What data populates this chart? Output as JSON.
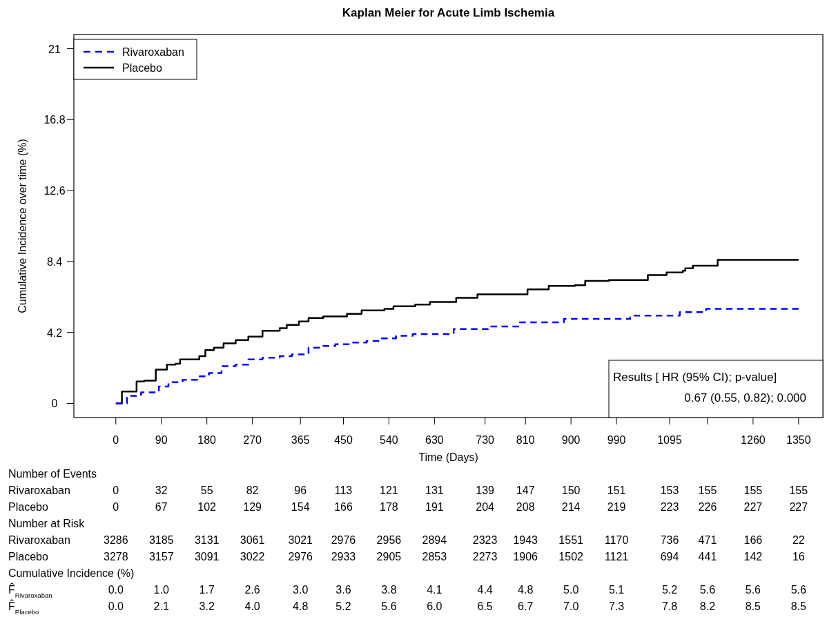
{
  "chart_data": {
    "type": "step",
    "title": "Kaplan Meier for Acute Limb Ischemia",
    "xlabel": "Time (Days)",
    "ylabel": "Cumulative Incidence over time (%)",
    "xlim": [
      -83,
      1398
    ],
    "ylim": [
      -0.84,
      21.84
    ],
    "xticks": [
      0,
      90,
      180,
      270,
      365,
      450,
      540,
      630,
      730,
      810,
      900,
      990,
      1095,
      {
        "value": 1170,
        "label": null
      },
      1260,
      1350
    ],
    "yticks": [
      0,
      4.2,
      8.4,
      12.6,
      16.8,
      21
    ],
    "legend": "top left",
    "series": [
      {
        "name": "Rivaroxaban",
        "color": "#0000ff",
        "line_style": "dashed",
        "x": [
          0,
          22,
          50,
          85,
          104,
          132,
          161,
          184,
          209,
          237,
          262,
          290,
          324,
          348,
          381,
          405,
          434,
          463,
          496,
          524,
          554,
          587,
          668,
          736,
          799,
          886,
          1017,
          1115,
          1167,
          1350
        ],
        "values": [
          0,
          0.45,
          0.65,
          1.0,
          1.25,
          1.4,
          1.6,
          1.8,
          2.2,
          2.3,
          2.6,
          2.7,
          2.8,
          2.9,
          3.3,
          3.4,
          3.5,
          3.6,
          3.7,
          3.85,
          4.0,
          4.1,
          4.4,
          4.55,
          4.8,
          5.0,
          5.2,
          5.4,
          5.6,
          5.6
        ]
      },
      {
        "name": "Placebo",
        "color": "#000000",
        "line_style": "solid",
        "x": [
          0,
          12,
          41,
          56,
          79,
          101,
          118,
          127,
          165,
          177,
          194,
          213,
          237,
          262,
          290,
          324,
          338,
          362,
          381,
          410,
          457,
          486,
          531,
          549,
          592,
          621,
          673,
          715,
          814,
          856,
          908,
          928,
          975,
          1052,
          1089,
          1121,
          1126,
          1141,
          1190,
          1350
        ],
        "values": [
          0,
          0.7,
          1.3,
          1.35,
          2.0,
          2.3,
          2.35,
          2.6,
          2.8,
          3.15,
          3.3,
          3.55,
          3.75,
          3.95,
          4.3,
          4.45,
          4.65,
          4.85,
          5.05,
          5.15,
          5.3,
          5.5,
          5.6,
          5.75,
          5.85,
          6.0,
          6.25,
          6.45,
          6.75,
          6.95,
          7.0,
          7.25,
          7.3,
          7.6,
          7.75,
          7.85,
          8.0,
          8.15,
          8.5,
          8.5
        ]
      }
    ],
    "annotations": [
      "Results [ HR (95% CI); p-value]",
      "0.67 (0.55, 0.82); 0.000",
      "Number of Events",
      "Rivaroxaban\t0\t32\t55\t82\t96\t113\t121\t131\t139\t147\t150\t151\t153\t155\t155\t155",
      "Placebo\t0\t67\t102\t129\t154\t166\t178\t191\t204\t208\t214\t219\t223\t226\t227\t227",
      "Number at Risk",
      "Rivaroxaban\t3286\t3185\t3131\t3061\t3021\t2976\t2956\t2894\t2323\t1943\t1551\t1170\t736\t471\t166\t22",
      "Placebo\t3278\t3157\t3091\t3022\t2976\t2933\t2905\t2853\t2273\t1906\t1502\t1121\t694\t441\t142\t16",
      "Cumulative Incidence (%)",
      "F̂$_{Rivaroxaban}$\t0.0\t1.0\t1.7\t2.6\t3.0\t3.6\t3.8\t4.1\t4.4\t4.8\t5.0\t5.1\t5.2\t5.6\t5.6\t5.6",
      "F̂$_{Placebo}$\t0.0\t2.1\t3.2\t4.0\t4.8\t5.2\t5.6\t6.0\t6.5\t6.7\t7.0\t7.3\t7.8\t8.2\t8.5\t8.5"
    ]
  }
}
